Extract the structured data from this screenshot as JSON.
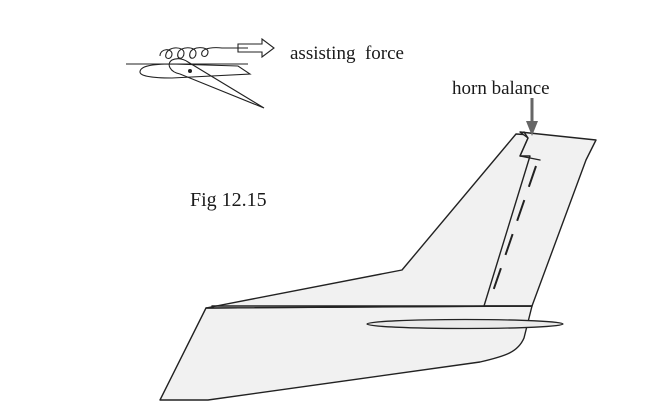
{
  "figure": {
    "caption": "Fig 12.15",
    "labels": {
      "assisting_force": "assisting  force",
      "horn_balance": "horn balance"
    },
    "colors": {
      "stroke": "#222222",
      "skin_fill": "#f1f1f1",
      "pointer_arrow": "#666666"
    }
  }
}
